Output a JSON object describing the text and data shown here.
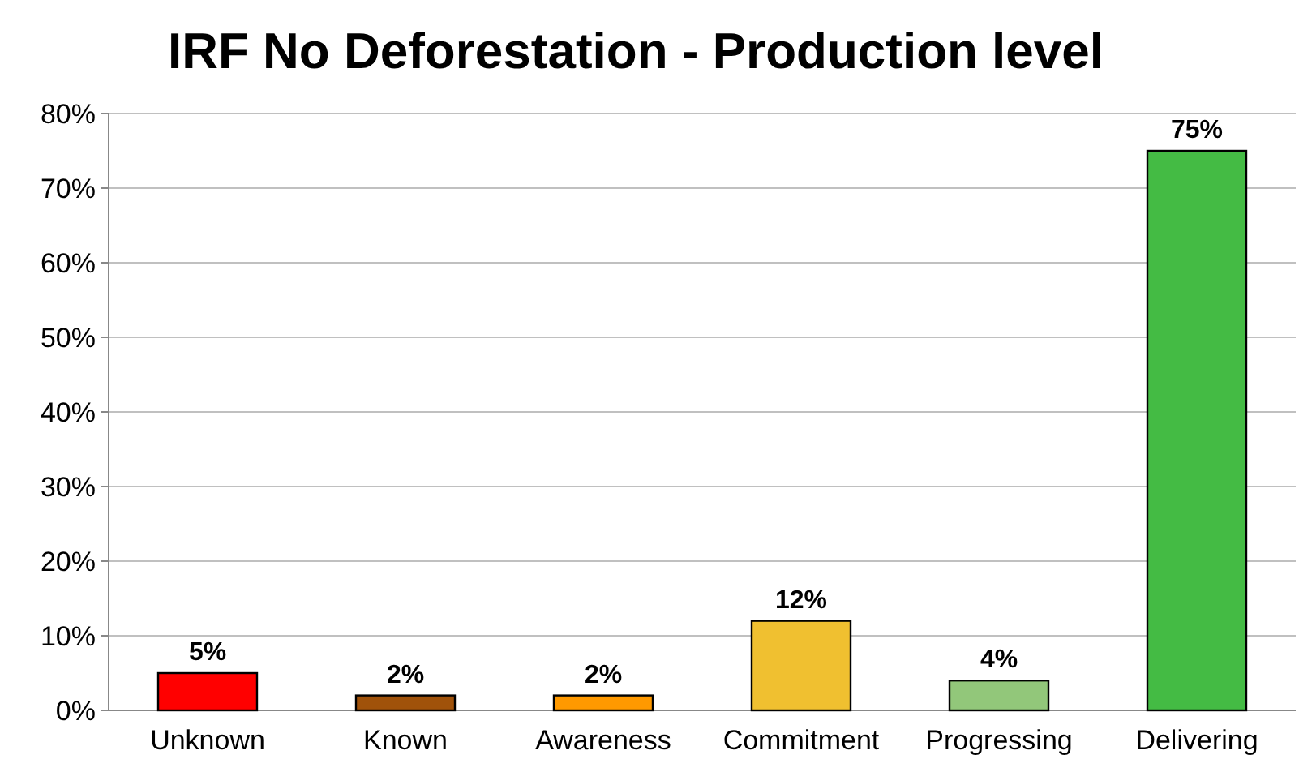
{
  "chart_data": {
    "type": "bar",
    "title": "IRF No Deforestation - Production level",
    "categories": [
      "Unknown",
      "Known",
      "Awareness",
      "Commitment",
      "Progressing",
      "Delivering"
    ],
    "values": [
      5,
      2,
      2,
      12,
      4,
      75
    ],
    "colors": [
      "#ff0000",
      "#a0520a",
      "#ff9900",
      "#f0c030",
      "#92c77a",
      "#44bb44"
    ],
    "value_labels": [
      "5%",
      "2%",
      "2%",
      "12%",
      "4%",
      "75%"
    ],
    "ylim": [
      0,
      80
    ],
    "yticks": [
      {
        "value": 0,
        "label": "0%"
      },
      {
        "value": 10,
        "label": "10%"
      },
      {
        "value": 20,
        "label": "20%"
      },
      {
        "value": 30,
        "label": "30%"
      },
      {
        "value": 40,
        "label": "40%"
      },
      {
        "value": 50,
        "label": "50%"
      },
      {
        "value": 60,
        "label": "60%"
      },
      {
        "value": 70,
        "label": "70%"
      },
      {
        "value": 80,
        "label": "80%"
      }
    ],
    "grid": "y"
  }
}
